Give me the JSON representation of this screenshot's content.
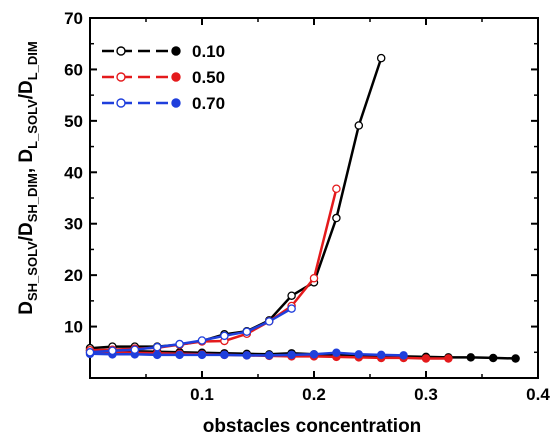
{
  "chart_data": {
    "type": "line",
    "title": "",
    "xlabel": "obstacles concentration",
    "ylabel": {
      "part1": "D",
      "sub1": "SH_SOLV",
      "part2": "/D",
      "sub2": "SH_DIM",
      "part3": ", D",
      "sub3": "L_SOLV",
      "part4": "/D",
      "sub4": "L_DIM"
    },
    "xlim": [
      0.0,
      0.4
    ],
    "ylim": [
      0,
      70
    ],
    "xticks": [
      0.1,
      0.2,
      0.3,
      0.4
    ],
    "xtick_labels": [
      "0.1",
      "0.2",
      "0.3",
      "0.4"
    ],
    "yticks": [
      10,
      20,
      30,
      40,
      50,
      60,
      70
    ],
    "ytick_labels": [
      "10",
      "20",
      "30",
      "40",
      "50",
      "60",
      "70"
    ],
    "grid": false,
    "legend_position": "top-left",
    "series": [
      {
        "name": "0.10",
        "color": "#000000",
        "marker_style": "open-and-filled",
        "open": {
          "x": [
            0.0,
            0.02,
            0.04,
            0.06,
            0.08,
            0.1,
            0.12,
            0.14,
            0.16,
            0.18,
            0.2,
            0.22,
            0.24,
            0.26
          ],
          "y": [
            5.8,
            6.1,
            6.1,
            6.1,
            6.5,
            7.2,
            8.5,
            9.1,
            11.2,
            16.0,
            18.6,
            31.1,
            49.1,
            62.2
          ]
        },
        "filled": {
          "x": [
            0.0,
            0.02,
            0.04,
            0.06,
            0.08,
            0.1,
            0.12,
            0.14,
            0.16,
            0.18,
            0.2,
            0.22,
            0.24,
            0.26,
            0.28,
            0.3,
            0.32,
            0.34,
            0.36,
            0.38
          ],
          "y": [
            5.4,
            5.3,
            5.2,
            5.1,
            5.0,
            4.9,
            4.8,
            4.7,
            4.6,
            4.8,
            4.6,
            4.5,
            4.4,
            4.3,
            4.2,
            4.1,
            4.0,
            4.0,
            3.9,
            3.8
          ]
        }
      },
      {
        "name": "0.50",
        "color": "#e41a1c",
        "marker_style": "open-and-filled",
        "open": {
          "x": [
            0.0,
            0.02,
            0.04,
            0.06,
            0.08,
            0.1,
            0.12,
            0.14,
            0.16,
            0.18,
            0.2,
            0.22
          ],
          "y": [
            5.4,
            5.5,
            5.7,
            5.9,
            6.5,
            7.1,
            7.2,
            8.6,
            11.0,
            14.0,
            19.4,
            36.8
          ]
        },
        "filled": {
          "x": [
            0.0,
            0.02,
            0.04,
            0.06,
            0.08,
            0.1,
            0.12,
            0.14,
            0.16,
            0.18,
            0.2,
            0.22,
            0.24,
            0.26,
            0.28,
            0.3,
            0.32
          ],
          "y": [
            5.0,
            5.0,
            4.9,
            4.8,
            4.7,
            4.6,
            4.5,
            4.4,
            4.3,
            4.2,
            4.2,
            4.1,
            4.0,
            3.9,
            3.9,
            3.8,
            3.8
          ]
        }
      },
      {
        "name": "0.70",
        "color": "#1f3fdc",
        "marker_style": "open-and-filled",
        "open": {
          "x": [
            0.0,
            0.02,
            0.04,
            0.06,
            0.08,
            0.1,
            0.12,
            0.14,
            0.16,
            0.18
          ],
          "y": [
            5.0,
            5.3,
            5.5,
            6.0,
            6.6,
            7.3,
            8.2,
            9.0,
            11.0,
            13.5
          ]
        },
        "filled": {
          "x": [
            0.0,
            0.02,
            0.04,
            0.06,
            0.08,
            0.1,
            0.12,
            0.14,
            0.16,
            0.18,
            0.2,
            0.22,
            0.24,
            0.26,
            0.28
          ],
          "y": [
            4.7,
            4.6,
            4.6,
            4.5,
            4.5,
            4.5,
            4.5,
            4.4,
            4.4,
            4.5,
            4.6,
            4.9,
            4.6,
            4.5,
            4.4
          ]
        }
      }
    ]
  }
}
